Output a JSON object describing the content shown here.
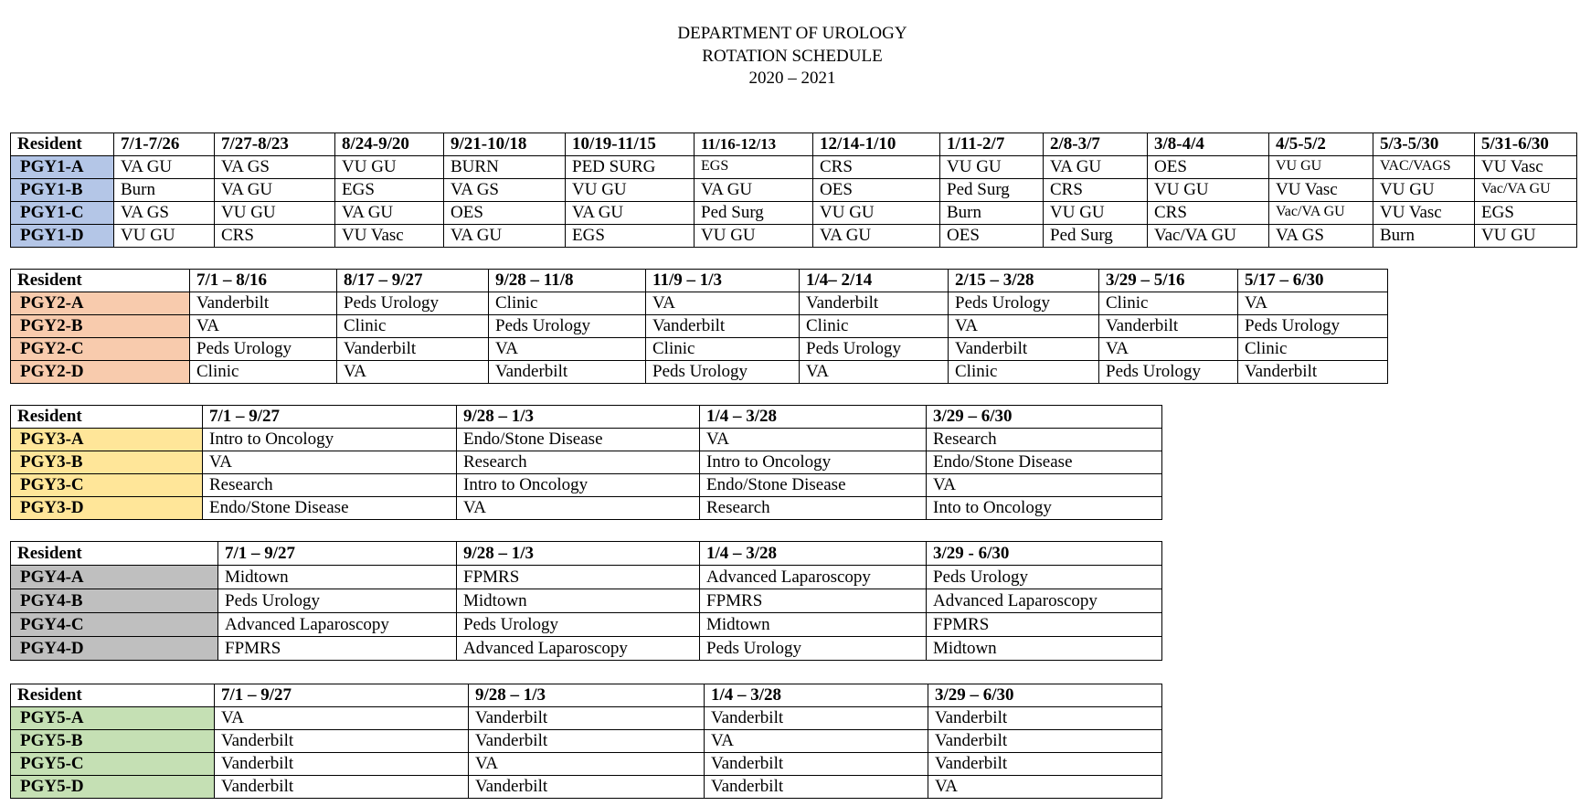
{
  "title": {
    "line1": "DEPARTMENT OF UROLOGY",
    "line2": "ROTATION SCHEDULE",
    "line3": "2020 – 2021"
  },
  "tables": [
    {
      "id": "pgy1",
      "color": "#b4c6e7",
      "headers": [
        "Resident",
        "7/1-7/26",
        "7/27-8/23",
        "8/24-9/20",
        "9/21-10/18",
        "10/19-11/15",
        "11/16-12/13",
        "12/14-1/10",
        "1/11-2/7",
        "2/8-3/7",
        "3/8-4/4",
        "4/5-5/2",
        "5/3-5/30",
        "5/31-6/30"
      ],
      "rows": [
        [
          "PGY1-A",
          "VA GU",
          "VA GS",
          "VU GU",
          "BURN",
          "PED SURG",
          "EGS",
          "CRS",
          "VU GU",
          "VA GU",
          "OES",
          "VU GU",
          "VAC/VAGS",
          "VU Vasc"
        ],
        [
          "PGY1-B",
          "Burn",
          "VA GU",
          "EGS",
          "VA GS",
          "VU GU",
          "VA GU",
          "OES",
          "Ped Surg",
          "CRS",
          "VU GU",
          "VU Vasc",
          "VU GU",
          "Vac/VA GU"
        ],
        [
          "PGY1-C",
          "VA GS",
          "VU GU",
          "VA GU",
          "OES",
          "VA GU",
          "Ped Surg",
          "VU GU",
          "Burn",
          "VU GU",
          "CRS",
          "Vac/VA GU",
          "VU Vasc",
          "EGS"
        ],
        [
          "PGY1-D",
          "VU GU",
          "CRS",
          "VU Vasc",
          "VA GU",
          "EGS",
          "VU GU",
          "VA GU",
          "OES",
          "Ped Surg",
          "Vac/VA GU",
          "VA GS",
          "Burn",
          "VU GU"
        ]
      ]
    },
    {
      "id": "pgy2",
      "color": "#f8cbad",
      "headers": [
        "Resident",
        "7/1 – 8/16",
        "8/17 – 9/27",
        "9/28 – 11/8",
        "11/9 – 1/3",
        "1/4– 2/14",
        "2/15 – 3/28",
        "3/29 – 5/16",
        "5/17 – 6/30"
      ],
      "rows": [
        [
          "PGY2-A",
          "Vanderbilt",
          "Peds Urology",
          "Clinic",
          "VA",
          "Vanderbilt",
          "Peds Urology",
          "Clinic",
          "VA"
        ],
        [
          "PGY2-B",
          "VA",
          "Clinic",
          "Peds Urology",
          "Vanderbilt",
          "Clinic",
          "VA",
          "Vanderbilt",
          "Peds Urology"
        ],
        [
          "PGY2-C",
          "Peds Urology",
          "Vanderbilt",
          "VA",
          "Clinic",
          "Peds Urology",
          "Vanderbilt",
          "VA",
          "Clinic"
        ],
        [
          "PGY2-D",
          "Clinic",
          "VA",
          "Vanderbilt",
          "Peds Urology",
          "VA",
          "Clinic",
          "Peds Urology",
          "Vanderbilt"
        ]
      ]
    },
    {
      "id": "pgy3",
      "color": "#ffe699",
      "headers": [
        "Resident",
        "7/1 – 9/27",
        "9/28 – 1/3",
        "1/4 – 3/28",
        "3/29 – 6/30"
      ],
      "rows": [
        [
          "PGY3-A",
          "Intro to Oncology",
          "Endo/Stone Disease",
          "VA",
          "Research"
        ],
        [
          "PGY3-B",
          "VA",
          "Research",
          "Intro to Oncology",
          "Endo/Stone Disease"
        ],
        [
          "PGY3-C",
          "Research",
          "Intro to Oncology",
          "Endo/Stone Disease",
          "VA"
        ],
        [
          "PGY3-D",
          "Endo/Stone Disease",
          "VA",
          "Research",
          "Into to Oncology"
        ]
      ]
    },
    {
      "id": "pgy4",
      "color": "#bfbfbf",
      "headers": [
        "Resident",
        "7/1 – 9/27",
        "9/28 – 1/3",
        "1/4 – 3/28",
        "3/29 - 6/30"
      ],
      "rows": [
        [
          "PGY4-A",
          "Midtown",
          "FPMRS",
          "Advanced Laparoscopy",
          "Peds Urology"
        ],
        [
          "PGY4-B",
          "Peds Urology",
          "Midtown",
          "FPMRS",
          "Advanced Laparoscopy"
        ],
        [
          "PGY4-C",
          "Advanced Laparoscopy",
          "Peds Urology",
          "Midtown",
          "FPMRS"
        ],
        [
          "PGY4-D",
          "FPMRS",
          "Advanced Laparoscopy",
          "Peds Urology",
          "Midtown"
        ]
      ]
    },
    {
      "id": "pgy5",
      "color": "#c5e0b4",
      "headers": [
        "Resident",
        "7/1 – 9/27",
        "9/28 – 1/3",
        "1/4 – 3/28",
        "3/29 – 6/30"
      ],
      "rows": [
        [
          "PGY5-A",
          "VA",
          "Vanderbilt",
          "Vanderbilt",
          "Vanderbilt"
        ],
        [
          "PGY5-B",
          "Vanderbilt",
          "Vanderbilt",
          "VA",
          "Vanderbilt"
        ],
        [
          "PGY5-C",
          "Vanderbilt",
          "VA",
          "Vanderbilt",
          "Vanderbilt"
        ],
        [
          "PGY5-D",
          "Vanderbilt",
          "Vanderbilt",
          "Vanderbilt",
          "VA"
        ]
      ]
    }
  ]
}
